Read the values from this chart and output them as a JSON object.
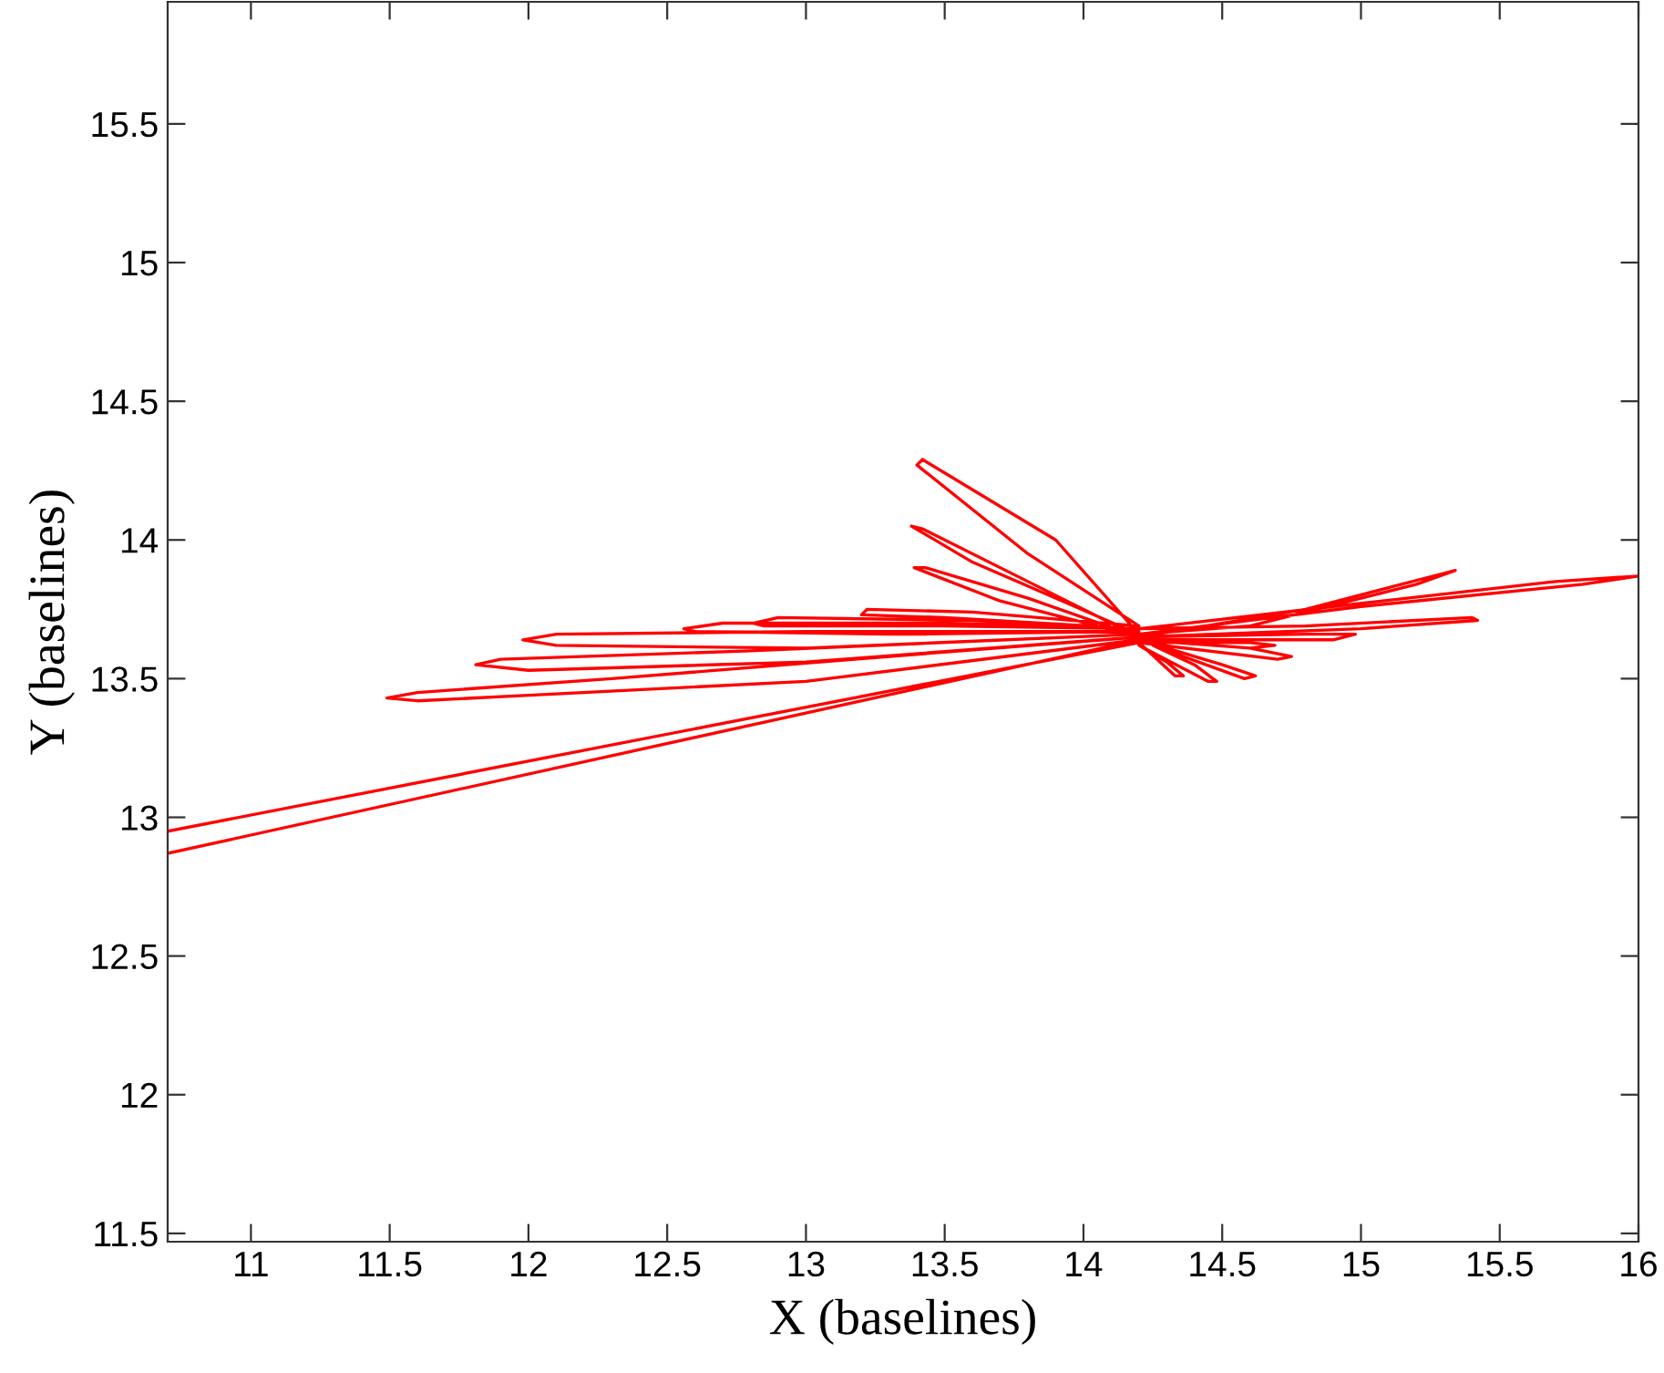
{
  "chart_data": {
    "type": "line",
    "xlabel": "X (baselines)",
    "ylabel": "Y (baselines)",
    "xlim": [
      10.7,
      16
    ],
    "ylim": [
      11.47,
      15.94
    ],
    "xticks": [
      11,
      11.5,
      12,
      12.5,
      13,
      13.5,
      14,
      14.5,
      15,
      15.5,
      16
    ],
    "yticks": [
      11.5,
      12,
      12.5,
      13,
      13.5,
      14,
      14.5,
      15,
      15.5
    ],
    "grid": false,
    "marker": "none",
    "line_style": "solid",
    "series": [
      {
        "color": "#ff0000",
        "x": [
          10.7,
          14.2,
          13.0,
          12.0,
          11.6,
          11.49,
          11.6,
          12.3,
          13.3,
          14.2,
          13.0,
          12.0,
          11.81,
          11.9,
          12.8,
          14.2,
          13.0,
          12.1,
          11.98,
          12.1,
          13.0,
          14.2,
          13.3,
          12.6,
          12.56,
          12.7,
          13.5,
          14.2,
          13.5,
          12.85,
          12.81,
          12.9,
          13.6,
          14.2,
          13.5,
          13.2,
          13.22,
          13.6,
          14.2,
          13.8,
          13.4,
          13.42,
          13.9,
          14.2,
          13.6,
          13.38,
          13.42,
          13.8,
          14.2,
          13.7,
          13.39,
          13.43,
          13.8,
          14.2,
          14.8,
          15.3,
          15.34,
          15.2,
          14.6,
          14.2,
          15.0,
          15.8,
          16.0,
          15.7,
          14.9,
          14.2,
          14.8,
          15.4,
          15.42,
          15.0,
          14.2,
          14.8,
          14.98,
          14.9,
          14.2,
          14.6,
          14.75,
          14.7,
          14.2,
          14.6,
          14.69,
          14.6,
          14.2,
          14.5,
          14.62,
          14.58,
          14.25,
          14.4,
          14.48,
          14.45,
          14.2,
          14.3,
          14.36,
          14.33,
          14.2,
          10.7
        ],
        "values": [
          12.87,
          13.64,
          13.49,
          13.44,
          13.42,
          13.43,
          13.45,
          13.5,
          13.58,
          13.65,
          13.56,
          13.53,
          13.55,
          13.57,
          13.6,
          13.66,
          13.61,
          13.62,
          13.64,
          13.66,
          13.67,
          13.67,
          13.66,
          13.67,
          13.68,
          13.7,
          13.7,
          13.68,
          13.69,
          13.69,
          13.7,
          13.72,
          13.71,
          13.68,
          13.72,
          13.73,
          13.75,
          13.74,
          13.69,
          13.95,
          14.27,
          14.29,
          14.0,
          13.66,
          13.92,
          14.05,
          14.04,
          13.85,
          13.65,
          13.78,
          13.9,
          13.9,
          13.79,
          13.65,
          13.75,
          13.88,
          13.89,
          13.84,
          13.69,
          13.66,
          13.76,
          13.84,
          13.87,
          13.85,
          13.76,
          13.68,
          13.69,
          13.72,
          13.71,
          13.68,
          13.65,
          13.66,
          13.66,
          13.64,
          13.64,
          13.61,
          13.58,
          13.57,
          13.63,
          13.63,
          13.62,
          13.61,
          13.64,
          13.55,
          13.51,
          13.5,
          13.62,
          13.55,
          13.49,
          13.49,
          13.62,
          13.56,
          13.51,
          13.51,
          13.63,
          12.95
        ]
      }
    ]
  }
}
